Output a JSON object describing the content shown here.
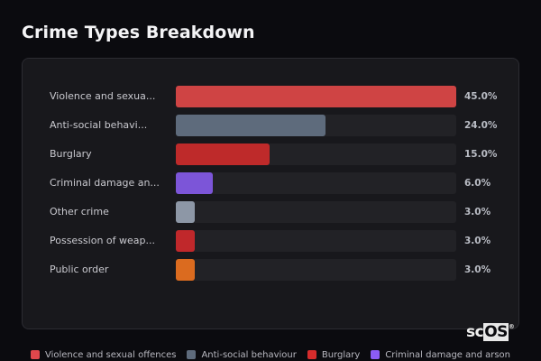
{
  "header": {
    "title": "Crime Types Breakdown"
  },
  "rows": [
    {
      "label": "Violence and sexua...",
      "full_label": "Violence and sexual offences",
      "value": 45.0,
      "pct": "45.0%",
      "color": "#cf4444"
    },
    {
      "label": "Anti-social behavi...",
      "full_label": "Anti-social behaviour",
      "value": 24.0,
      "pct": "24.0%",
      "color": "#5e6b7c"
    },
    {
      "label": "Burglary",
      "full_label": "Burglary",
      "value": 15.0,
      "pct": "15.0%",
      "color": "#be2a2a"
    },
    {
      "label": "Criminal damage an...",
      "full_label": "Criminal damage and arson",
      "value": 6.0,
      "pct": "6.0%",
      "color": "#7c55d8"
    },
    {
      "label": "Other crime",
      "full_label": "Other crime",
      "value": 3.0,
      "pct": "3.0%",
      "color": "#8d97a6"
    },
    {
      "label": "Possession of weap...",
      "full_label": "Possession of weapons",
      "value": 3.0,
      "pct": "3.0%",
      "color": "#c0282b"
    },
    {
      "label": "Public order",
      "full_label": "Public order",
      "value": 3.0,
      "pct": "3.0%",
      "color": "#db6b1f"
    }
  ],
  "legend": [
    {
      "label": "Violence and sexual offences",
      "color": "#e0474c"
    },
    {
      "label": "Anti-social behaviour",
      "color": "#5e6b7c"
    },
    {
      "label": "Burglary",
      "color": "#d62c2c"
    },
    {
      "label": "Criminal damage and arson",
      "color": "#8b5cf6"
    }
  ],
  "watermark": {
    "sc": "sc",
    "os": "OS",
    "reg": "®"
  },
  "chart_data": {
    "type": "bar",
    "orientation": "horizontal",
    "title": "Crime Types Breakdown",
    "categories": [
      "Violence and sexual offences",
      "Anti-social behaviour",
      "Burglary",
      "Criminal damage and arson",
      "Other crime",
      "Possession of weapons",
      "Public order"
    ],
    "values": [
      45.0,
      24.0,
      15.0,
      6.0,
      3.0,
      3.0,
      3.0
    ],
    "value_labels": [
      "45.0%",
      "24.0%",
      "15.0%",
      "6.0%",
      "3.0%",
      "3.0%",
      "3.0%"
    ],
    "unit": "%",
    "xlabel": "",
    "ylabel": "",
    "xlim": [
      0,
      45
    ],
    "grid": false,
    "legend_position": "bottom",
    "legend_entries": [
      "Violence and sexual offences",
      "Anti-social behaviour",
      "Burglary",
      "Criminal damage and arson"
    ]
  }
}
